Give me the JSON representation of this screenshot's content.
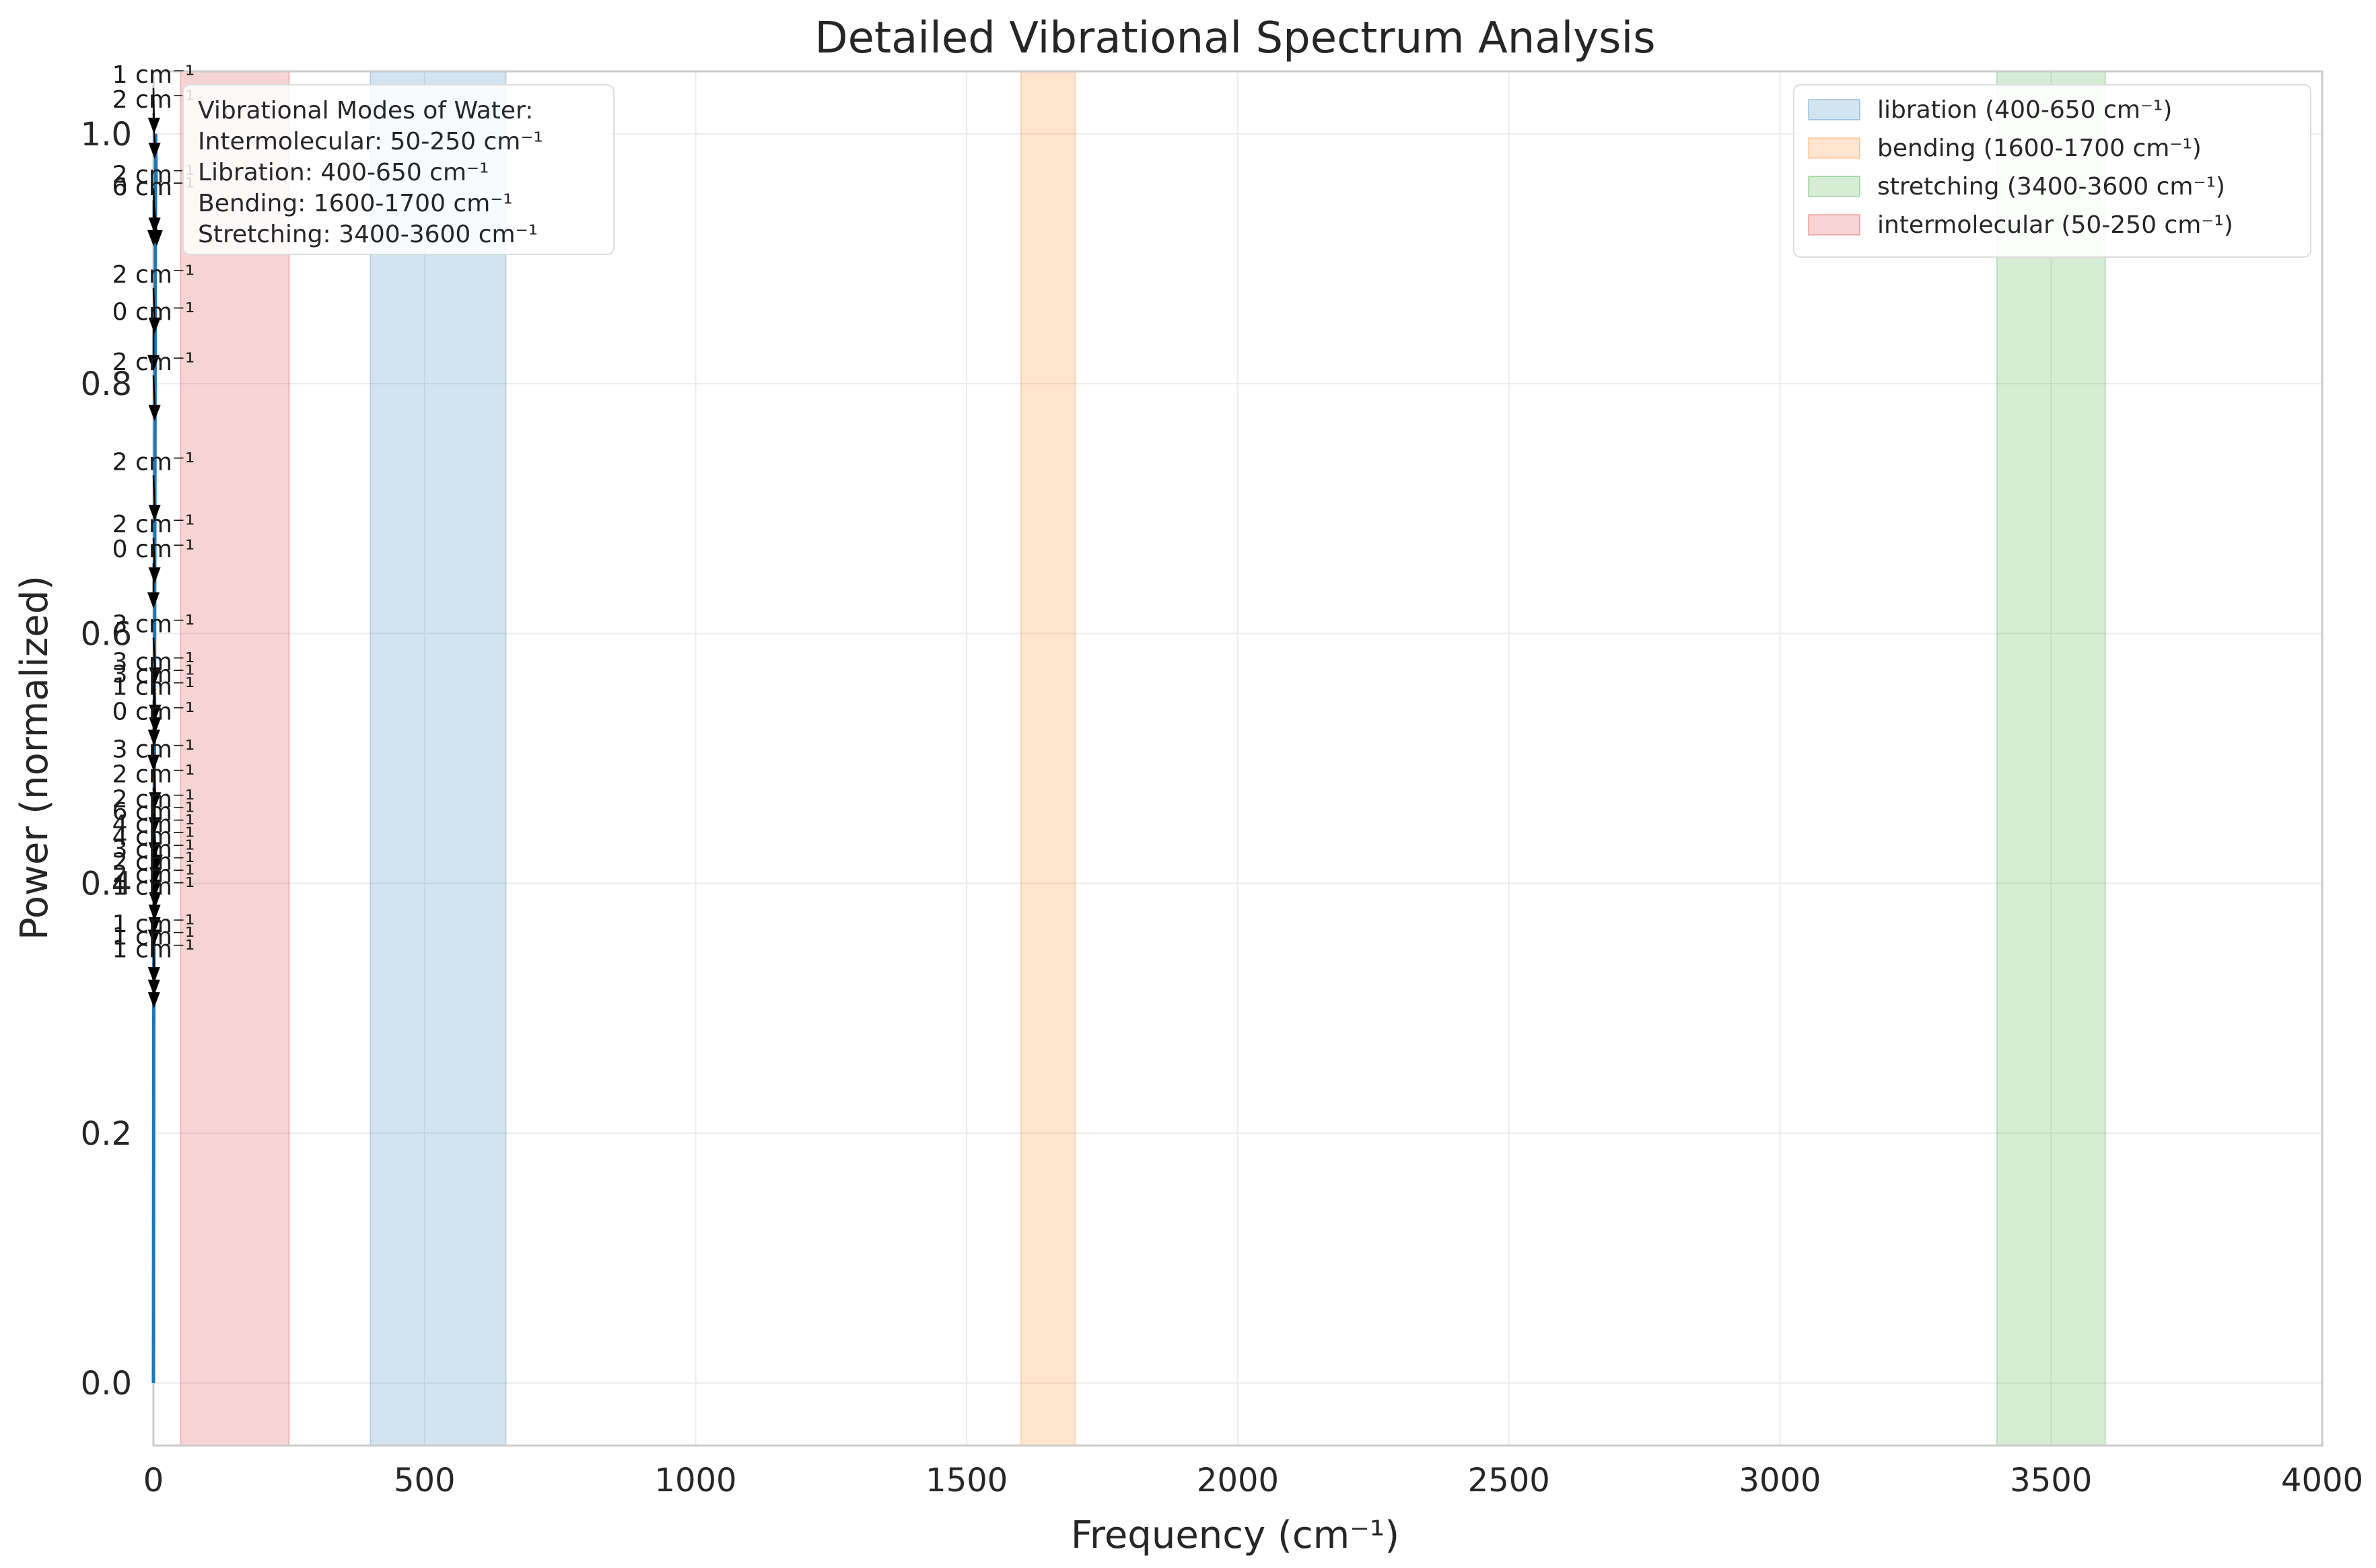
{
  "chart_data": {
    "type": "line",
    "title": "Detailed Vibrational Spectrum Analysis",
    "xlabel": "Frequency (cm⁻¹)",
    "ylabel": "Power (normalized)",
    "xlim": [
      0,
      4000
    ],
    "ylim": [
      -0.05,
      1.05
    ],
    "xticks": [
      0,
      500,
      1000,
      1500,
      2000,
      2500,
      3000,
      3500,
      4000
    ],
    "yticks": [
      0.0,
      0.2,
      0.4,
      0.6,
      0.8,
      1.0
    ],
    "grid": true,
    "legend_position": "top-right",
    "line_color": "#1f77b4",
    "bands": [
      {
        "name": "libration (400-650 cm⁻¹)",
        "x0": 400,
        "x1": 650,
        "color": "#1f77b4"
      },
      {
        "name": "bending (1600-1700 cm⁻¹)",
        "x0": 1600,
        "x1": 1700,
        "color": "#ff7f0e"
      },
      {
        "name": "stretching (3400-3600 cm⁻¹)",
        "x0": 3400,
        "x1": 3600,
        "color": "#2ca02c"
      },
      {
        "name": "intermolecular (50-250 cm⁻¹)",
        "x0": 50,
        "x1": 250,
        "color": "#d62728"
      }
    ],
    "series": [
      {
        "x": [
          0,
          0.5,
          1,
          1.5,
          2,
          2.5,
          3,
          3.5,
          4,
          5
        ],
        "y": [
          0.0,
          0.27,
          0.35,
          0.42,
          0.55,
          0.68,
          0.8,
          0.92,
          1.0,
          0.96
        ]
      }
    ],
    "peak_annotations": [
      {
        "label": "1 cm⁻¹",
        "x": 1,
        "y": 1.0
      },
      {
        "label": "2 cm⁻¹",
        "x": 2,
        "y": 0.98
      },
      {
        "label": "2 cm⁻¹",
        "x": 2,
        "y": 0.92
      },
      {
        "label": "0 cm⁻¹",
        "x": 0,
        "y": 0.91
      },
      {
        "label": "6 cm⁻¹",
        "x": 6,
        "y": 0.91
      },
      {
        "label": "2 cm⁻¹",
        "x": 2,
        "y": 0.84
      },
      {
        "label": "0 cm⁻¹",
        "x": 0,
        "y": 0.81
      },
      {
        "label": "2 cm⁻¹",
        "x": 2,
        "y": 0.77
      },
      {
        "label": "2 cm⁻¹",
        "x": 2,
        "y": 0.69
      },
      {
        "label": "2 cm⁻¹",
        "x": 2,
        "y": 0.64
      },
      {
        "label": "0 cm⁻¹",
        "x": 0,
        "y": 0.62
      },
      {
        "label": "3 cm⁻¹",
        "x": 3,
        "y": 0.56
      },
      {
        "label": "3 cm⁻¹",
        "x": 3,
        "y": 0.53
      },
      {
        "label": "3 cm⁻¹",
        "x": 3,
        "y": 0.52
      },
      {
        "label": "1 cm⁻¹",
        "x": 1,
        "y": 0.51
      },
      {
        "label": "0 cm⁻¹",
        "x": 0,
        "y": 0.49
      },
      {
        "label": "3 cm⁻¹",
        "x": 3,
        "y": 0.46
      },
      {
        "label": "2 cm⁻¹",
        "x": 2,
        "y": 0.44
      },
      {
        "label": "2 cm⁻¹",
        "x": 2,
        "y": 0.42
      },
      {
        "label": "6 cm⁻¹",
        "x": 6,
        "y": 0.41
      },
      {
        "label": "4 cm⁻¹",
        "x": 4,
        "y": 0.4
      },
      {
        "label": "4 cm⁻¹",
        "x": 4,
        "y": 0.39
      },
      {
        "label": "3 cm⁻¹",
        "x": 3,
        "y": 0.38
      },
      {
        "label": "2 cm⁻¹",
        "x": 2,
        "y": 0.37
      },
      {
        "label": "2 cm⁻¹",
        "x": 2,
        "y": 0.36
      },
      {
        "label": "1 cm⁻¹",
        "x": 1,
        "y": 0.35
      },
      {
        "label": "1 cm⁻¹",
        "x": 1,
        "y": 0.32
      },
      {
        "label": "1 cm⁻¹",
        "x": 1,
        "y": 0.31
      },
      {
        "label": "1 cm⁻¹",
        "x": 1,
        "y": 0.3
      }
    ],
    "info_box": {
      "lines": [
        "Vibrational Modes of Water:",
        "Intermolecular: 50-250 cm⁻¹",
        "Libration: 400-650 cm⁻¹",
        "Bending: 1600-1700 cm⁻¹",
        "Stretching: 3400-3600 cm⁻¹"
      ]
    }
  }
}
